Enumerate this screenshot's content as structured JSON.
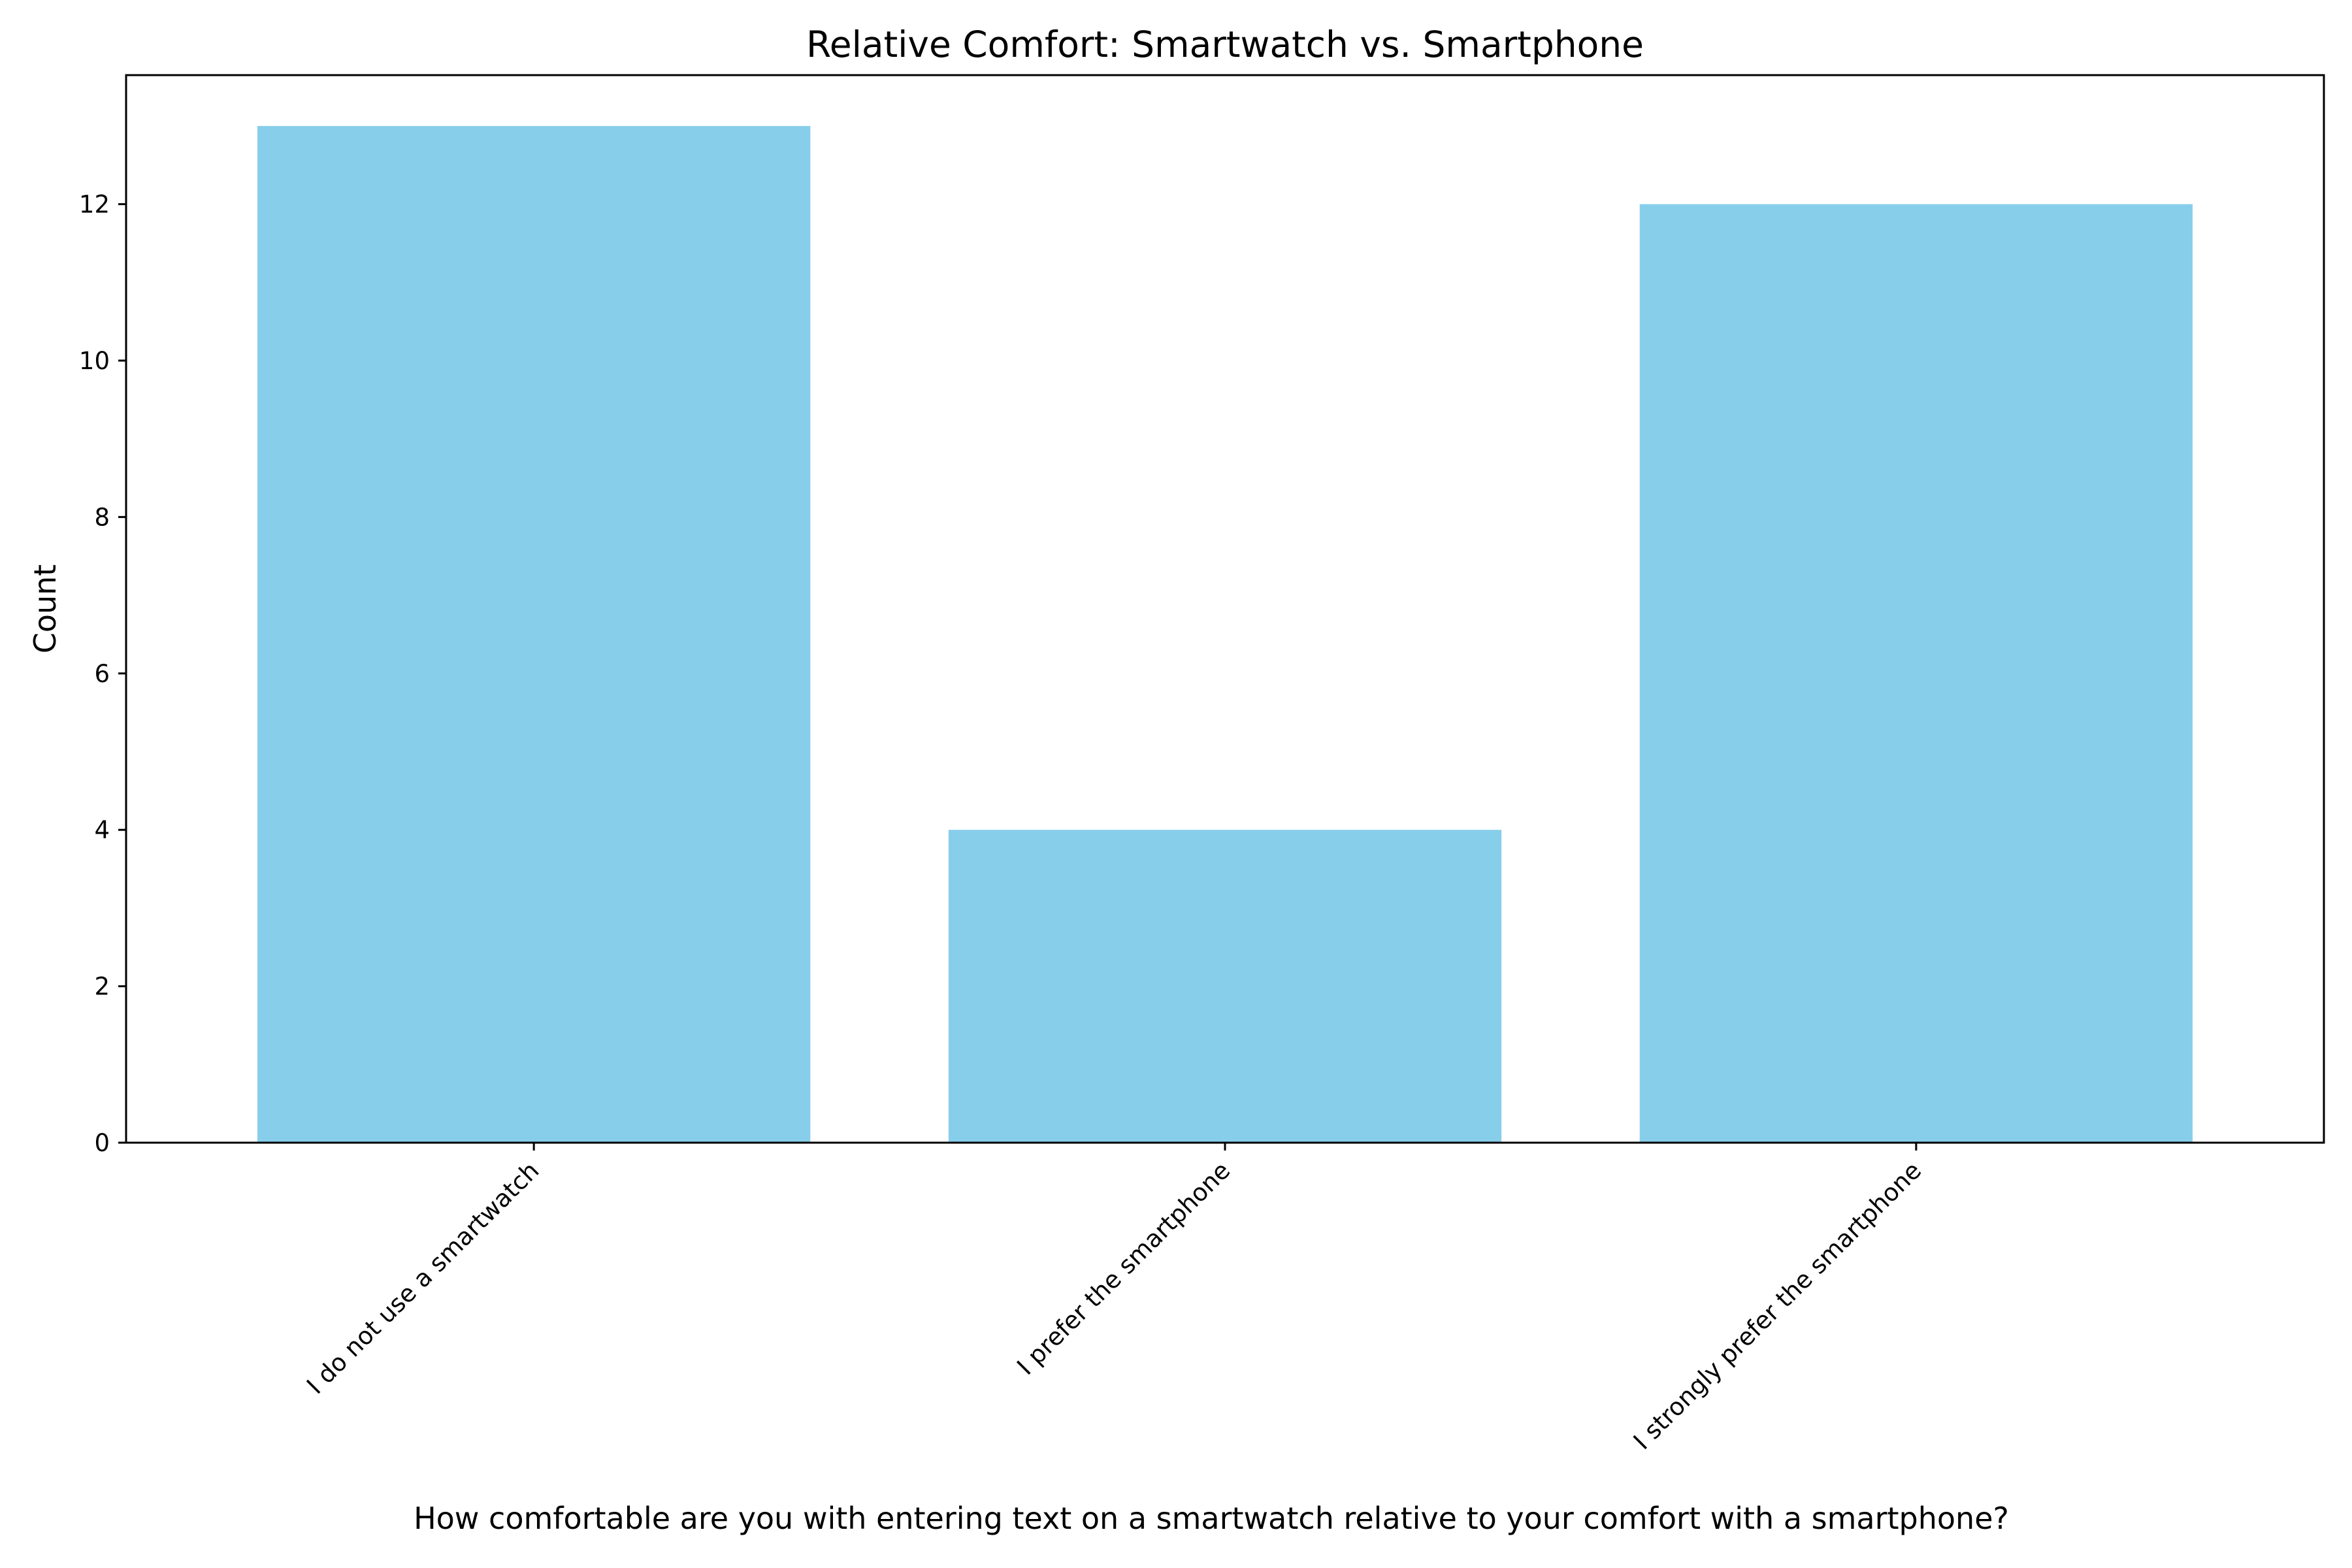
{
  "chart_data": {
    "type": "bar",
    "title": "Relative Comfort: Smartwatch vs. Smartphone",
    "xlabel": "How comfortable are you with entering text on a smartwatch relative to your comfort with a smartphone?",
    "ylabel": "Count",
    "categories": [
      "I do not use a smartwatch",
      "I prefer the smartphone",
      "I strongly prefer the smartphone"
    ],
    "values": [
      13,
      4,
      12
    ],
    "ylim": [
      0,
      13.65
    ],
    "yticks": [
      0,
      2,
      4,
      6,
      8,
      10,
      12
    ],
    "bar_color": "#87ceeb",
    "grid": false,
    "legend": "none"
  }
}
